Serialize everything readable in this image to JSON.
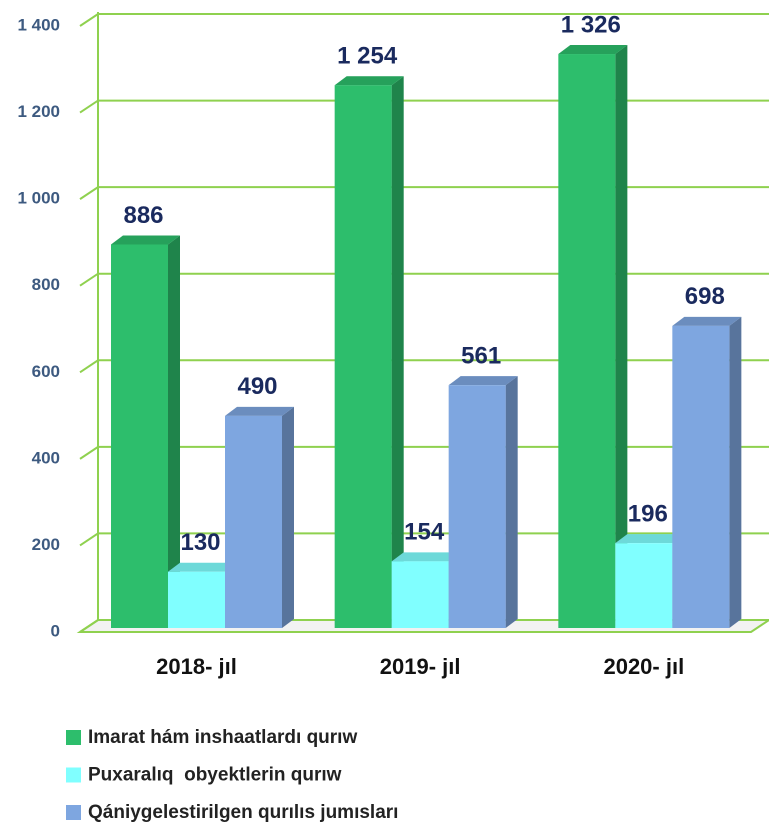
{
  "chart_data": {
    "type": "bar3d",
    "categories": [
      "2018- jıl",
      "2019- jıl",
      "2020- jıl"
    ],
    "series": [
      {
        "name": "Imarat hám inshaatlardı qurıw",
        "color": "#2dbe6c",
        "values": [
          886,
          1254,
          1326
        ],
        "value_labels": [
          "886",
          "1 254",
          "1 326"
        ]
      },
      {
        "name": "Puxaralıq  obyektlerin qurıw",
        "color": "#80ffff",
        "values": [
          130,
          154,
          196
        ]
      },
      {
        "name": "Qániygelestirilgen qurılıs jumısları",
        "color": "#7ea6e0",
        "values": [
          490,
          561,
          698
        ]
      }
    ],
    "ylim": [
      0,
      1400
    ],
    "yticks": [
      0,
      200,
      400,
      600,
      800,
      {
        "value": 1000,
        "label": "1 000"
      },
      {
        "value": 1200,
        "label": "1 200"
      },
      {
        "value": 1400,
        "label": "1 400"
      }
    ],
    "grid": true,
    "grid_color": "#8fd14f",
    "legend": "bottom"
  }
}
